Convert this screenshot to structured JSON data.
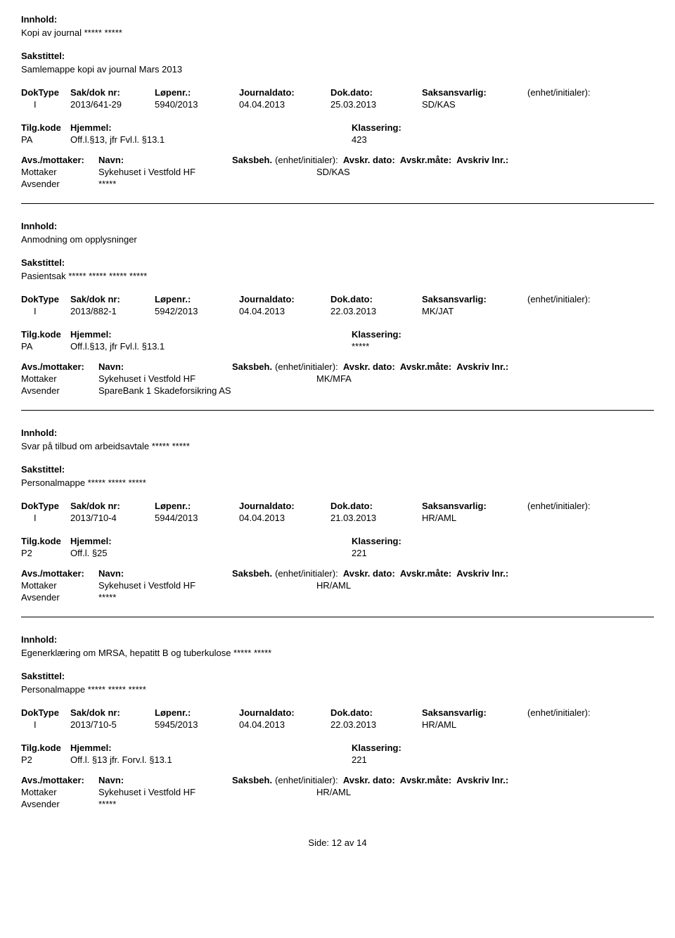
{
  "labels": {
    "innhold": "Innhold:",
    "sakstittel": "Sakstittel:",
    "doktype": "DokType",
    "sakdok": "Sak/dok nr:",
    "lopenr": "Løpenr.:",
    "journaldato": "Journaldato:",
    "dokdato": "Dok.dato:",
    "saksansvarlig": "Saksansvarlig:",
    "enhet": "(enhet/initialer):",
    "tilgkode": "Tilg.kode",
    "hjemmel": "Hjemmel:",
    "klassering": "Klassering:",
    "avs": "Avs./mottaker:",
    "navn": "Navn:",
    "saksbeh": "Saksbeh.",
    "saksbeh_enhet": "(enhet/initialer):",
    "avskr_dato": "Avskr. dato:",
    "avskr_mate": "Avskr.måte:",
    "avskriv_lnr": "Avskriv lnr.:",
    "mottaker": "Mottaker",
    "avsender": "Avsender",
    "side": "Side:"
  },
  "page": {
    "current": "12",
    "sep": "av",
    "total": "14"
  },
  "records": [
    {
      "innhold": "Kopi av journal ***** *****",
      "sakstittel": "Samlemappe kopi av journal Mars 2013",
      "doktype": "I",
      "sakdok": "2013/641-29",
      "lopenr": "5940/2013",
      "journaldato": "04.04.2013",
      "dokdato": "25.03.2013",
      "saksansvarlig": "SD/KAS",
      "tilgkode": "PA",
      "hjemmel": "Off.l.§13, jfr Fvl.l. §13.1",
      "klassering": "423",
      "mottaker_navn": "Sykehuset i Vestfold HF",
      "mottaker_saksbeh": "SD/KAS",
      "avsender_navn": "*****"
    },
    {
      "innhold": "Anmodning om opplysninger",
      "sakstittel": "Pasientsak ***** ***** ***** *****",
      "doktype": "I",
      "sakdok": "2013/882-1",
      "lopenr": "5942/2013",
      "journaldato": "04.04.2013",
      "dokdato": "22.03.2013",
      "saksansvarlig": "MK/JAT",
      "tilgkode": "PA",
      "hjemmel": "Off.l.§13, jfr Fvl.l. §13.1",
      "klassering": "*****",
      "mottaker_navn": "Sykehuset i Vestfold HF",
      "mottaker_saksbeh": "MK/MFA",
      "avsender_navn": "SpareBank 1 Skadeforsikring AS"
    },
    {
      "innhold": "Svar på tilbud om arbeidsavtale ***** *****",
      "sakstittel": "Personalmappe ***** ***** *****",
      "doktype": "I",
      "sakdok": "2013/710-4",
      "lopenr": "5944/2013",
      "journaldato": "04.04.2013",
      "dokdato": "21.03.2013",
      "saksansvarlig": "HR/AML",
      "tilgkode": "P2",
      "hjemmel": "Off.l. §25",
      "klassering": "221",
      "mottaker_navn": "Sykehuset i Vestfold HF",
      "mottaker_saksbeh": "HR/AML",
      "avsender_navn": "*****"
    },
    {
      "innhold": "Egenerklæring om MRSA, hepatitt B og tuberkulose ***** *****",
      "sakstittel": "Personalmappe ***** ***** *****",
      "doktype": "I",
      "sakdok": "2013/710-5",
      "lopenr": "5945/2013",
      "journaldato": "04.04.2013",
      "dokdato": "22.03.2013",
      "saksansvarlig": "HR/AML",
      "tilgkode": "P2",
      "hjemmel": "Off.l. §13  jfr. Forv.l. §13.1",
      "klassering": "221",
      "mottaker_navn": "Sykehuset i Vestfold HF",
      "mottaker_saksbeh": "HR/AML",
      "avsender_navn": "*****"
    }
  ]
}
